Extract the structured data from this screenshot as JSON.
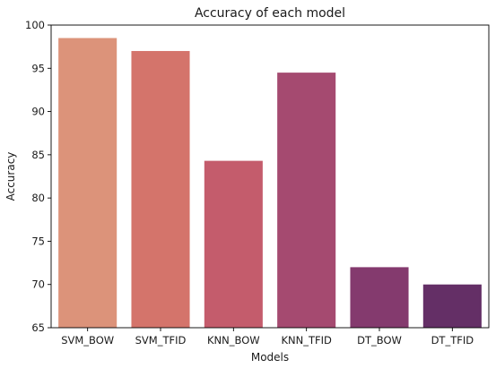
{
  "chart_data": {
    "type": "bar",
    "title": "Accuracy of each model",
    "xlabel": "Models",
    "ylabel": "Accuracy",
    "categories": [
      "SVM_BOW",
      "SVM_TFID",
      "KNN_BOW",
      "KNN_TFID",
      "DT_BOW",
      "DT_TFID"
    ],
    "values": [
      98.5,
      97.0,
      84.3,
      94.5,
      72.0,
      70.0
    ],
    "colors": [
      "#dc937a",
      "#d4746b",
      "#c45c6c",
      "#a54a70",
      "#843a6e",
      "#642f66"
    ],
    "ylim": [
      65,
      100
    ],
    "yticks": [
      65,
      70,
      75,
      80,
      85,
      90,
      95,
      100
    ],
    "grid": false,
    "legend": "none"
  }
}
